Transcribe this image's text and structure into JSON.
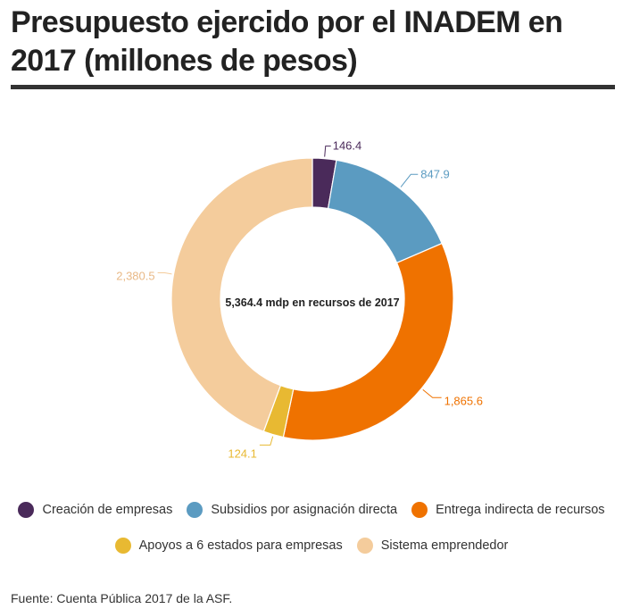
{
  "title": "Presupuesto ejercido por el INADEM en 2017 (millones de pesos)",
  "center_label": "5,364.4 mdp en recursos de 2017",
  "source": "Fuente: Cuenta Pública 2017 de la ASF.",
  "chart_data": {
    "type": "pie",
    "title": "Presupuesto ejercido por el INADEM en 2017 (millones de pesos)",
    "total_label": "5,364.4 mdp en recursos de 2017",
    "legend_position": "bottom",
    "categories": [
      "Creación de empresas",
      "Subsidios por asignación directa",
      "Entrega indirecta de recursos",
      "Apoyos a 6 estados para empresas",
      "Sistema emprendedor"
    ],
    "values": [
      146.4,
      847.9,
      1865.6,
      124.1,
      2380.5
    ],
    "labels": [
      "146.4",
      "847.9",
      "1,865.6",
      "124.1",
      "2,380.5"
    ],
    "colors": [
      "#4a2a5a",
      "#5b9bc1",
      "#ef7200",
      "#e8b932",
      "#f4cc9c"
    ]
  }
}
